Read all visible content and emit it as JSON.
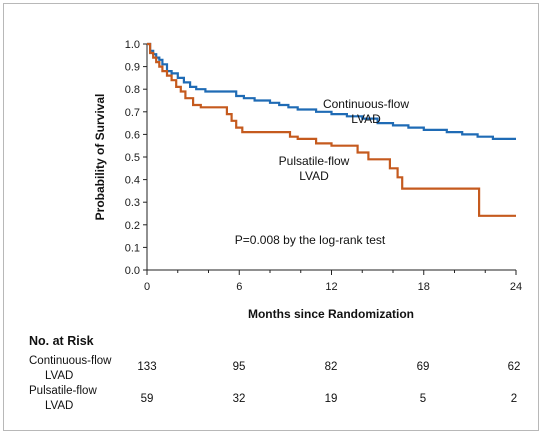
{
  "chart_data": {
    "type": "line",
    "title": "",
    "xlabel": "Months since Randomization",
    "ylabel": "Probability of Survival",
    "xlim": [
      0,
      24
    ],
    "ylim": [
      0,
      1.0
    ],
    "xticks": [
      0,
      6,
      12,
      18,
      24
    ],
    "yticks": [
      0.0,
      0.1,
      0.2,
      0.3,
      0.4,
      0.5,
      0.6,
      0.7,
      0.8,
      0.9,
      1.0
    ],
    "ytick_labels": [
      "0.0",
      "0.1",
      "0.2",
      "0.3",
      "0.4",
      "0.5",
      "0.6",
      "0.7",
      "0.8",
      "0.9",
      "1.0"
    ],
    "grid": false,
    "step": true,
    "series": [
      {
        "name_lines": [
          "Continuous-flow",
          "LVAD"
        ],
        "color": "#1f6bb5",
        "points": [
          [
            0,
            1.0
          ],
          [
            0.2,
            0.97
          ],
          [
            0.4,
            0.955
          ],
          [
            0.6,
            0.94
          ],
          [
            0.8,
            0.93
          ],
          [
            1.0,
            0.91
          ],
          [
            1.3,
            0.88
          ],
          [
            1.6,
            0.87
          ],
          [
            2.0,
            0.85
          ],
          [
            2.4,
            0.83
          ],
          [
            2.8,
            0.81
          ],
          [
            3.2,
            0.8
          ],
          [
            3.8,
            0.79
          ],
          [
            5.8,
            0.77
          ],
          [
            6.3,
            0.76
          ],
          [
            7.0,
            0.75
          ],
          [
            8.0,
            0.74
          ],
          [
            8.6,
            0.73
          ],
          [
            9.2,
            0.72
          ],
          [
            9.8,
            0.71
          ],
          [
            11.0,
            0.7
          ],
          [
            12.0,
            0.69
          ],
          [
            13.0,
            0.68
          ],
          [
            14.0,
            0.67
          ],
          [
            15.0,
            0.65
          ],
          [
            16.0,
            0.64
          ],
          [
            17.0,
            0.63
          ],
          [
            18.0,
            0.62
          ],
          [
            19.5,
            0.61
          ],
          [
            20.5,
            0.6
          ],
          [
            21.5,
            0.59
          ],
          [
            22.5,
            0.58
          ],
          [
            24.0,
            0.58
          ]
        ]
      },
      {
        "name_lines": [
          "Pulsatile-flow",
          "LVAD"
        ],
        "color": "#c55a1e",
        "points": [
          [
            0,
            1.0
          ],
          [
            0.2,
            0.96
          ],
          [
            0.4,
            0.94
          ],
          [
            0.6,
            0.92
          ],
          [
            0.8,
            0.9
          ],
          [
            1.0,
            0.88
          ],
          [
            1.3,
            0.86
          ],
          [
            1.6,
            0.84
          ],
          [
            1.9,
            0.81
          ],
          [
            2.2,
            0.79
          ],
          [
            2.5,
            0.76
          ],
          [
            3.0,
            0.73
          ],
          [
            3.5,
            0.72
          ],
          [
            5.2,
            0.69
          ],
          [
            5.5,
            0.66
          ],
          [
            5.8,
            0.63
          ],
          [
            6.2,
            0.61
          ],
          [
            7.5,
            0.61
          ],
          [
            9.3,
            0.59
          ],
          [
            9.8,
            0.58
          ],
          [
            11.0,
            0.56
          ],
          [
            12.0,
            0.55
          ],
          [
            13.7,
            0.52
          ],
          [
            14.4,
            0.49
          ],
          [
            15.8,
            0.45
          ],
          [
            16.3,
            0.41
          ],
          [
            16.6,
            0.36
          ],
          [
            21.6,
            0.24
          ],
          [
            24.0,
            0.24
          ]
        ]
      }
    ],
    "annotation": "P=0.008 by the log-rank test"
  },
  "risk_table": {
    "title": "No. at Risk",
    "rows": [
      {
        "label_lines": [
          "Continuous-flow",
          "LVAD"
        ],
        "values": [
          "133",
          "95",
          "82",
          "69",
          "62"
        ]
      },
      {
        "label_lines": [
          "Pulsatile-flow",
          "LVAD"
        ],
        "values": [
          "59",
          "32",
          "19",
          "5",
          "2"
        ]
      }
    ]
  }
}
